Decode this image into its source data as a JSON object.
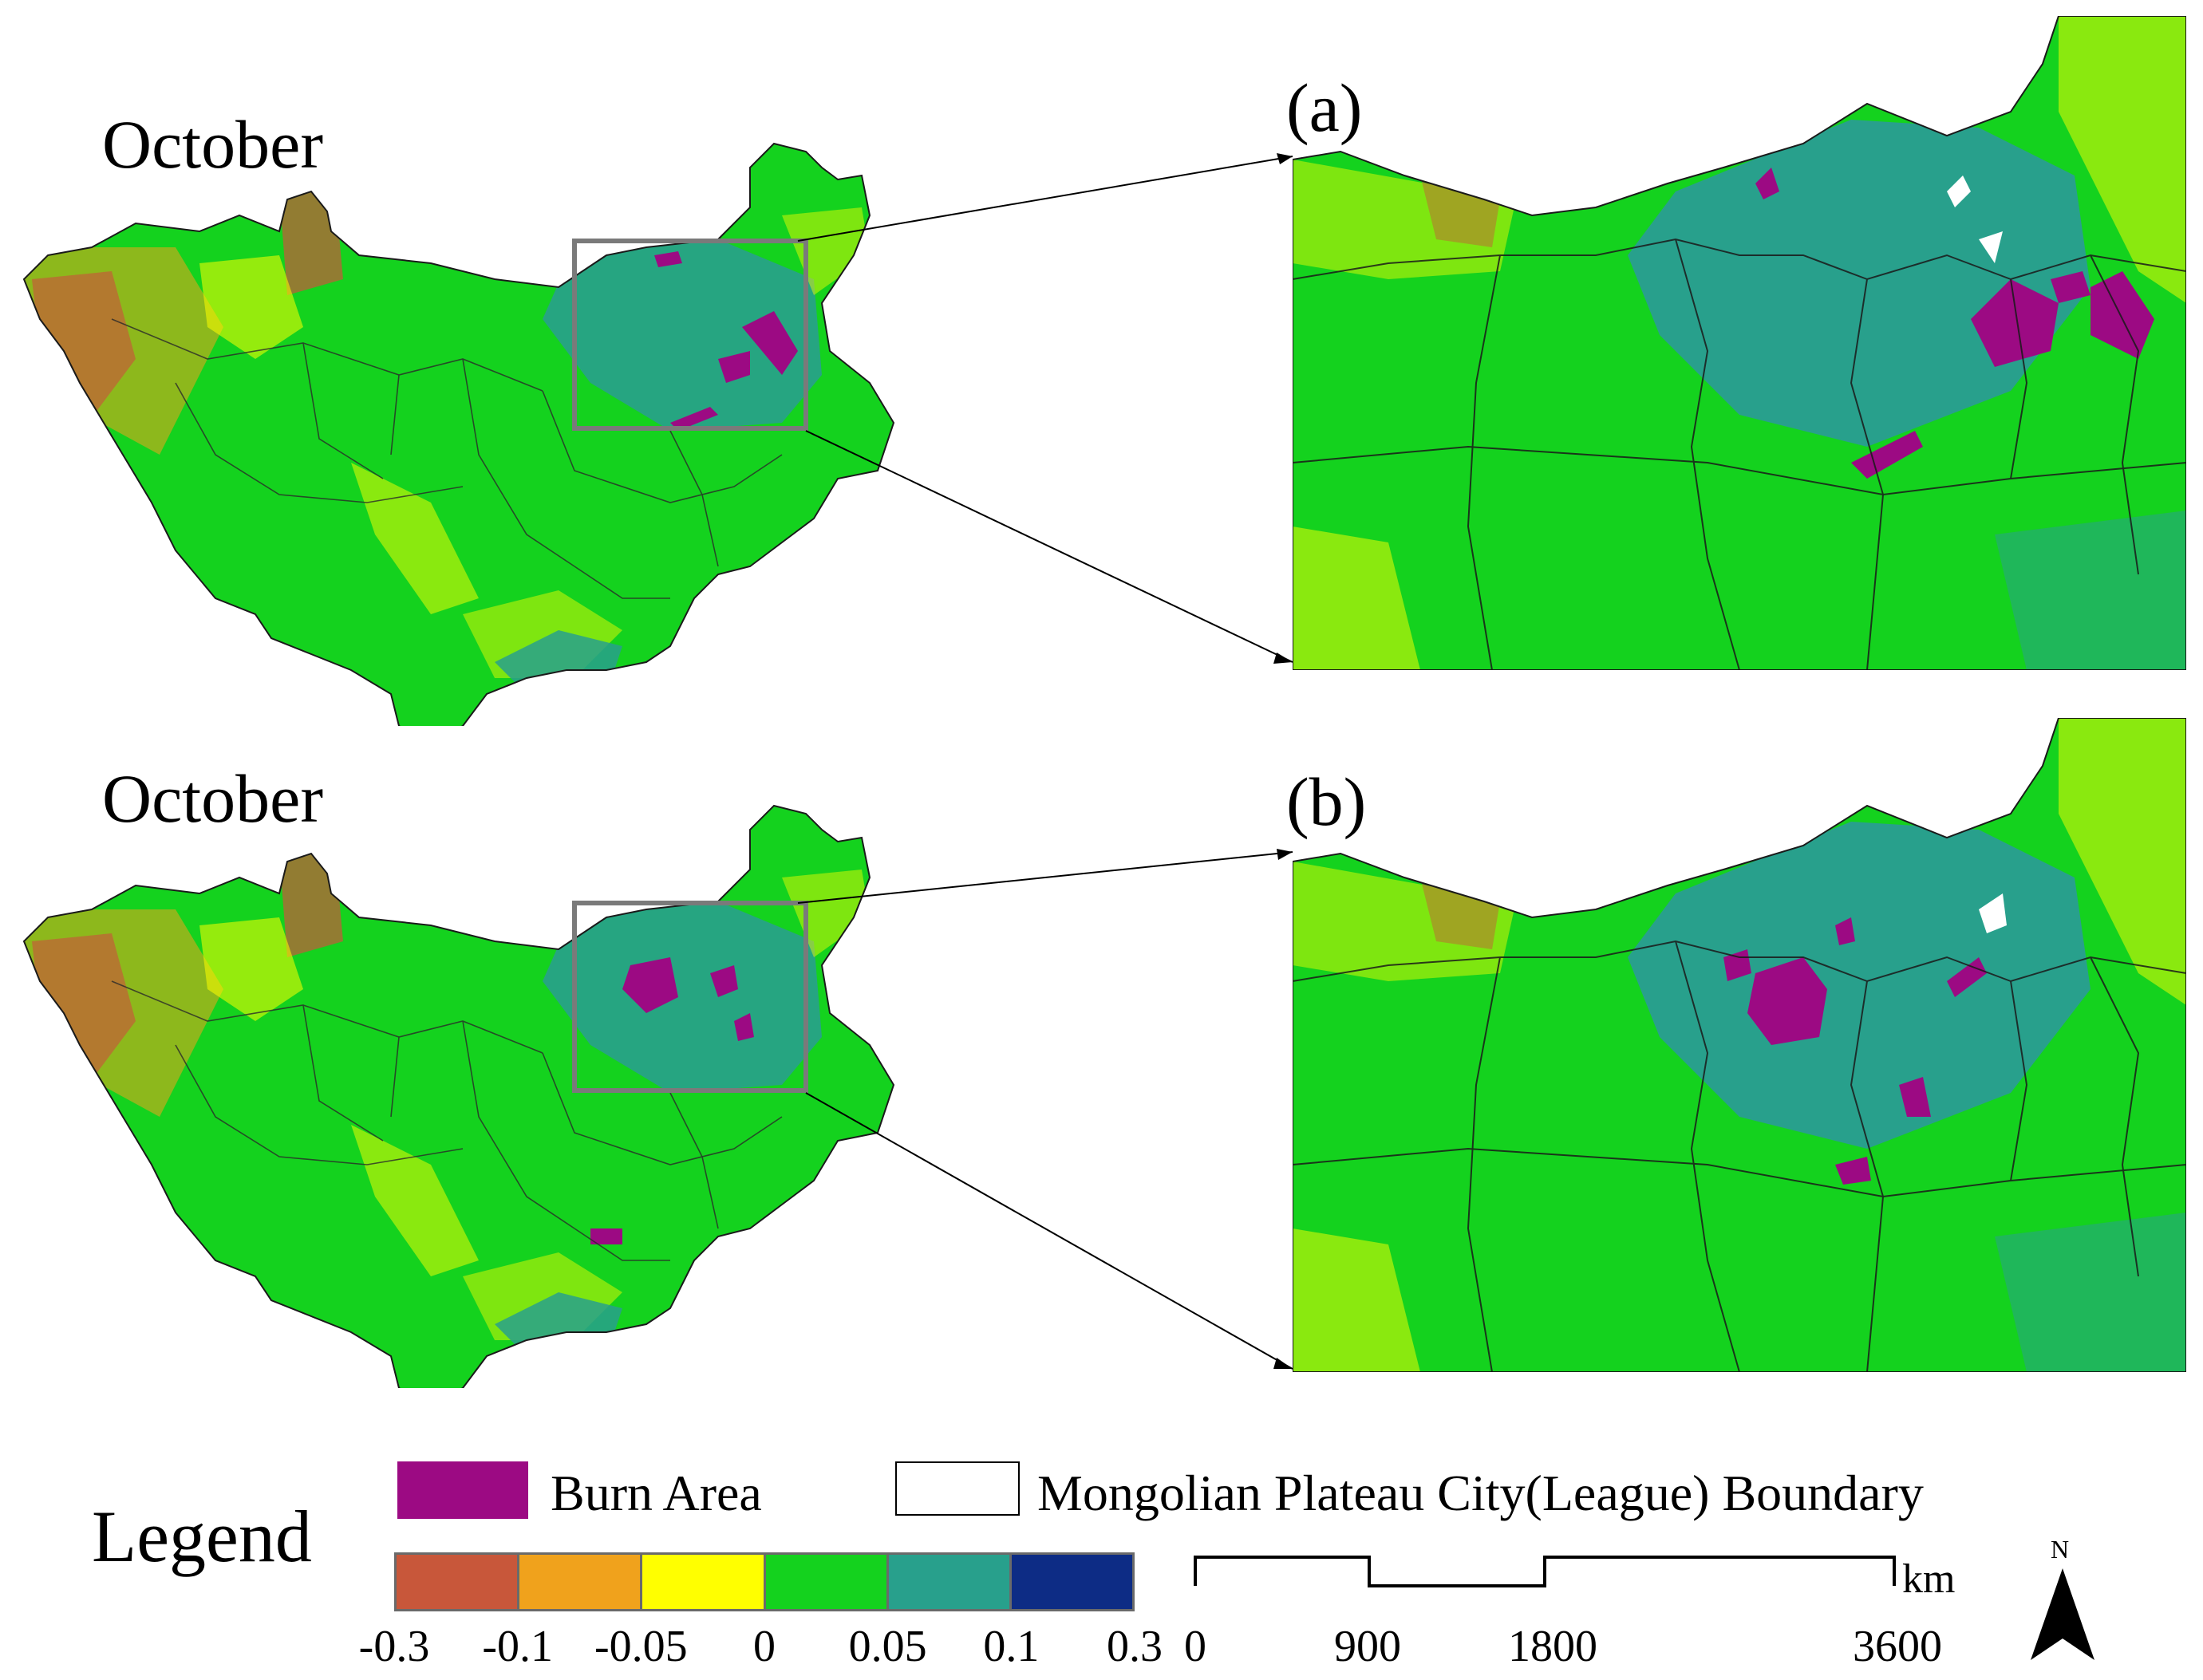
{
  "panels": [
    {
      "month": "October",
      "label": "(a)"
    },
    {
      "month": "October",
      "label": "(b)"
    }
  ],
  "legend": {
    "title": "Legend",
    "burn_area_label": "Burn Area",
    "boundary_label": "Mongolian Plateau City(League) Boundary",
    "burn_color": "#9c0a83",
    "classes": [
      {
        "color": "#c8573a"
      },
      {
        "color": "#f0a21c"
      },
      {
        "color": "#ffff00"
      },
      {
        "color": "#14d21e"
      },
      {
        "color": "#28a08c"
      },
      {
        "color": "#0d2c85"
      }
    ],
    "class_breaks": [
      "-0.3",
      "-0.1",
      "-0.05",
      "0",
      "0.05",
      "0.1",
      "0.3"
    ]
  },
  "scale_bar": {
    "ticks": [
      "0",
      "900",
      "1800",
      "3600"
    ],
    "unit": "km"
  },
  "north_arrow": {
    "label": "N",
    "icon": "north-arrow-icon"
  },
  "colors": {
    "positive_low": "#14d21e",
    "positive_mid": "#28a08c",
    "negative_low": "#ffff00",
    "negative_mid": "#f0a21c",
    "negative_high": "#c8573a",
    "positive_high": "#0d2c85",
    "burn": "#9c0a83"
  }
}
